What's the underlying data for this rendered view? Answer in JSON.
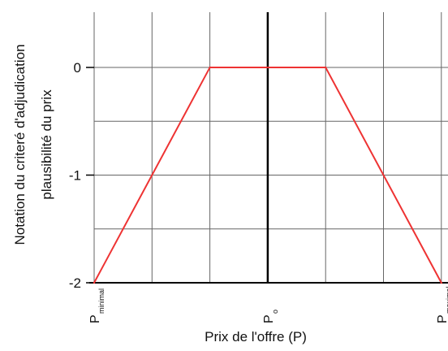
{
  "chart_data": {
    "type": "line",
    "title": "",
    "xlabel": "Prix de l'offre (P)",
    "ylabel_line1": "Notation du criteré d'adjudication",
    "ylabel_line2": "plausibilité du prix",
    "x_tick_labels": [
      {
        "x": 0,
        "main": "P",
        "sub": "minimal"
      },
      {
        "x": 3,
        "main": "P",
        "sub": "o"
      },
      {
        "x": 6,
        "main": "P",
        "sub": "maximal"
      }
    ],
    "y_ticks": [
      0,
      -1,
      -2
    ],
    "y_tick_labels": [
      "0",
      "-1",
      "-2"
    ],
    "xlim": [
      0,
      6.2
    ],
    "ylim": [
      -2,
      0.5
    ],
    "grid": true,
    "series": [
      {
        "name": "",
        "color": "#ee3333",
        "points": [
          {
            "x": 0,
            "y": -2
          },
          {
            "x": 2,
            "y": 0
          },
          {
            "x": 4,
            "y": 0
          },
          {
            "x": 6,
            "y": -2
          }
        ]
      }
    ]
  }
}
